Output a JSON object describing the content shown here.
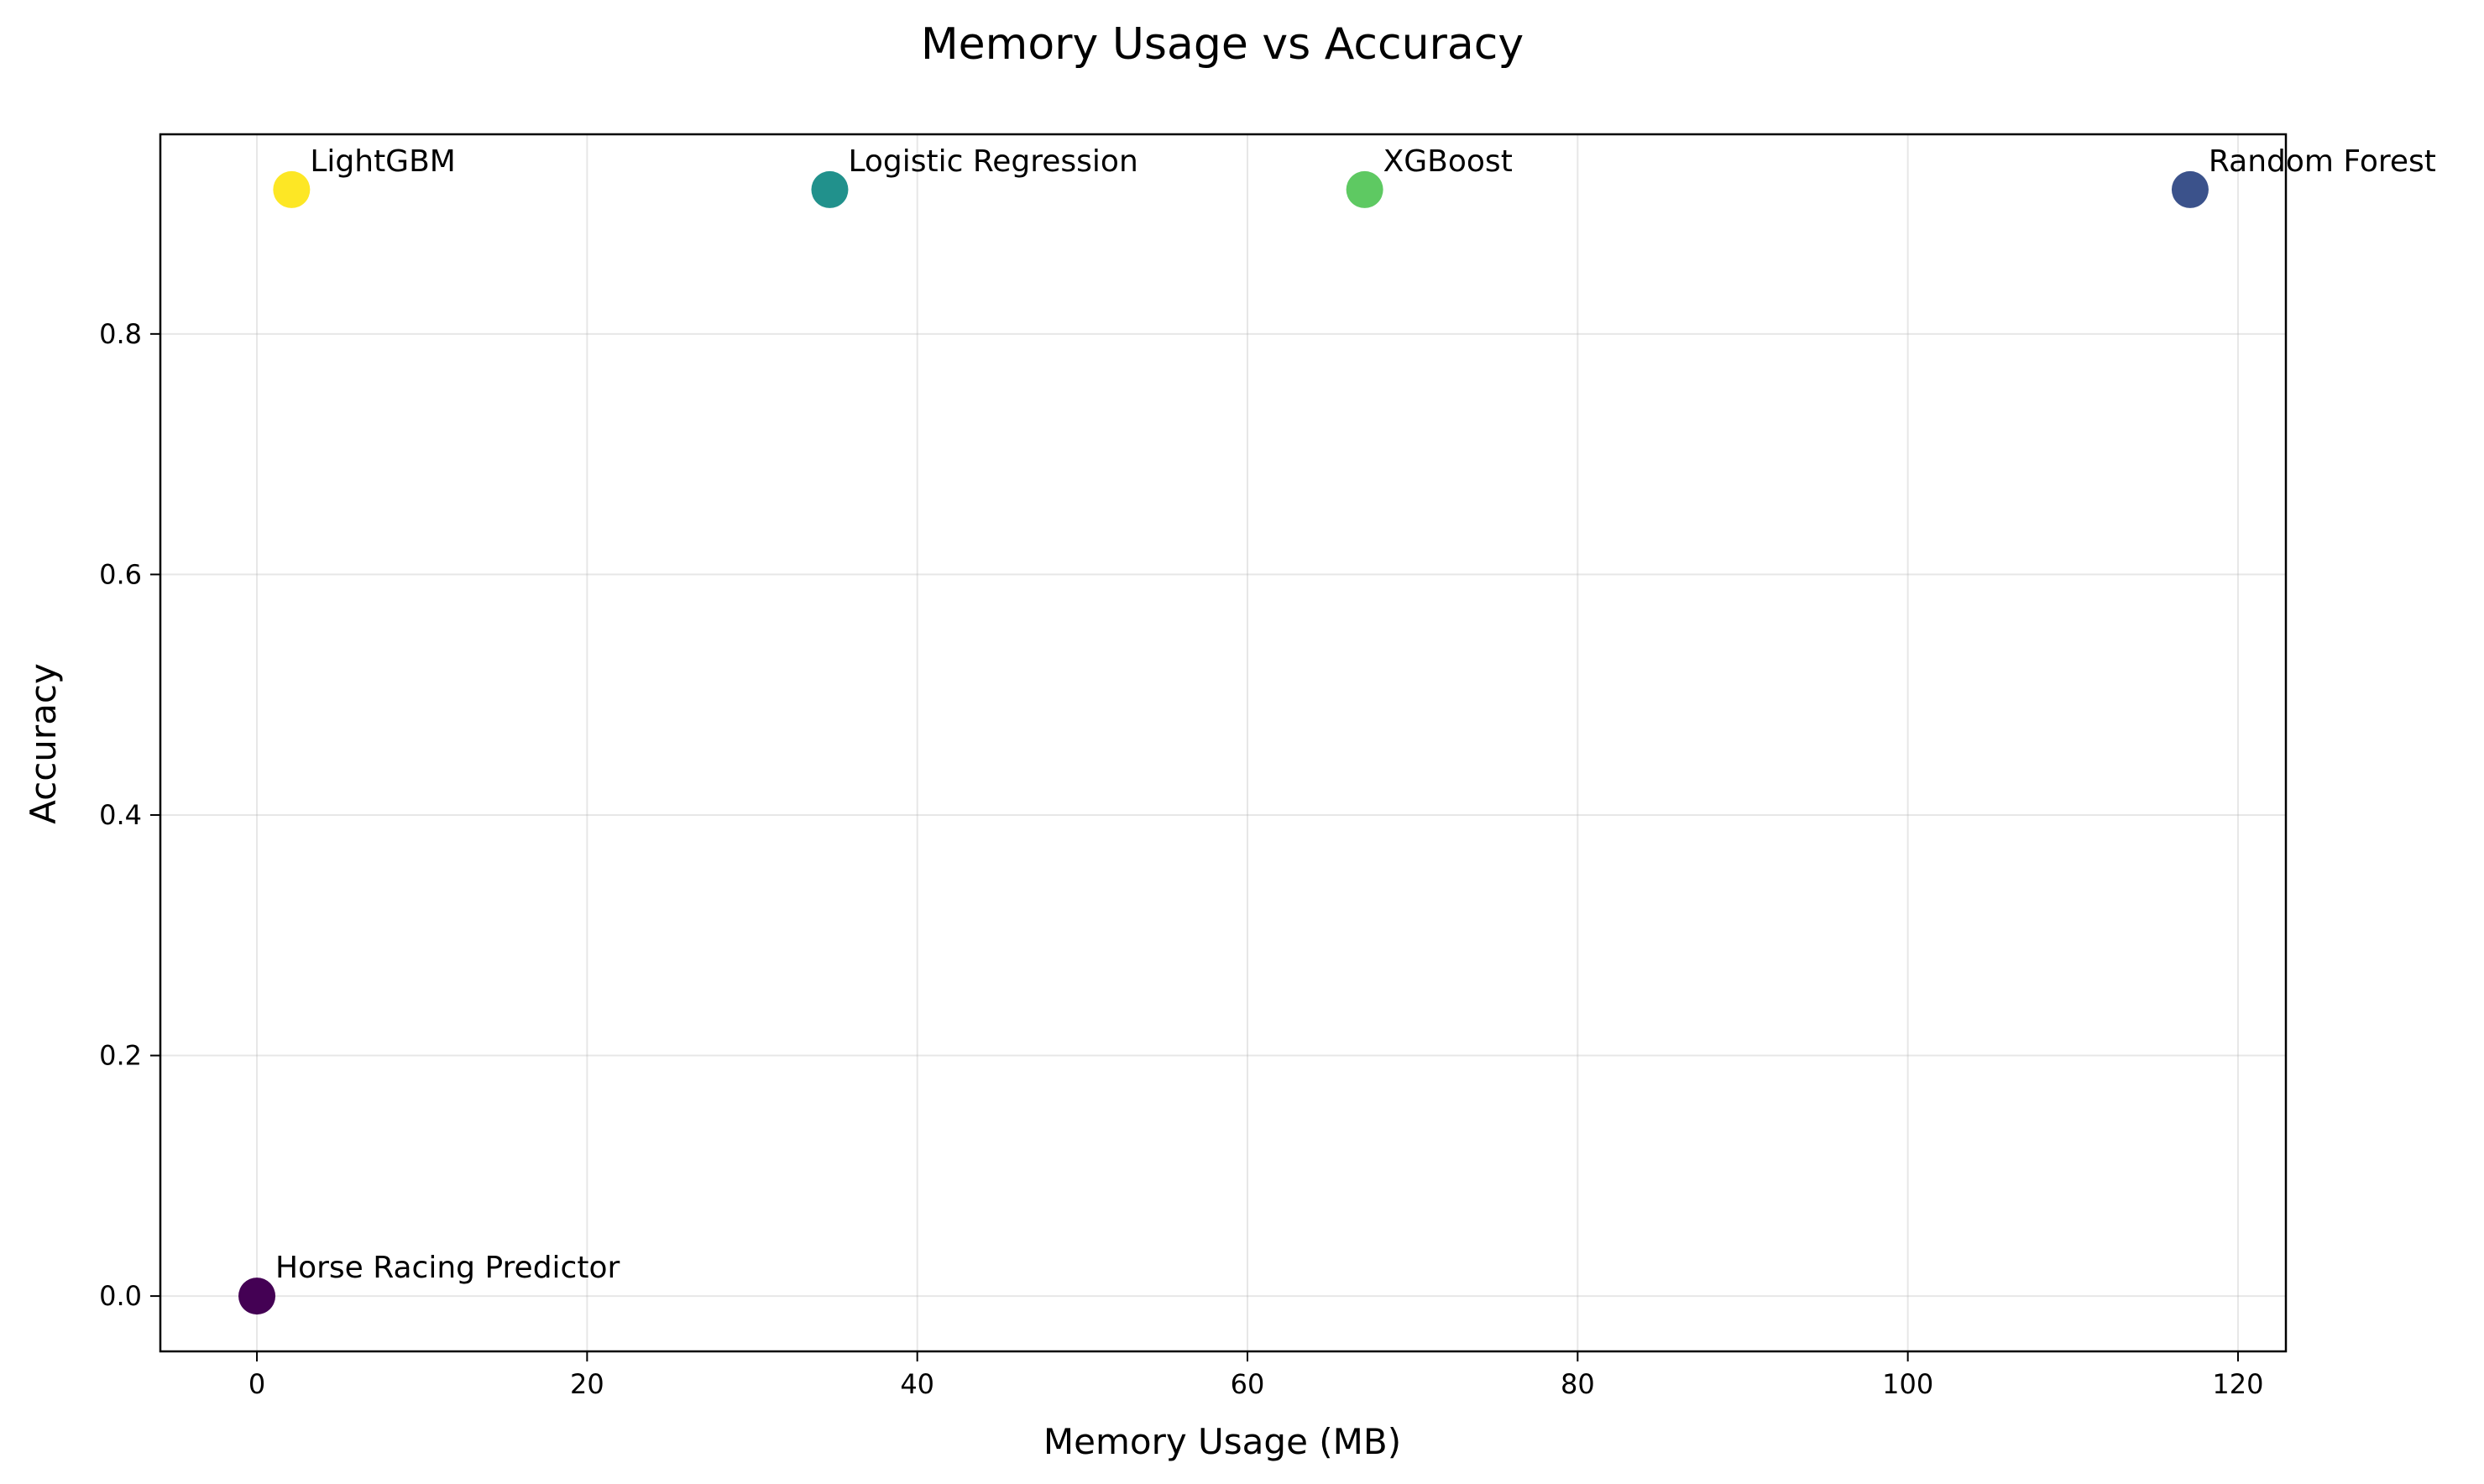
{
  "chart_data": {
    "type": "scatter",
    "title": "Memory Usage vs Accuracy",
    "xlabel": "Memory Usage (MB)",
    "ylabel": "Accuracy",
    "xlim": [
      -5.85,
      122.9
    ],
    "ylim": [
      -0.046,
      0.966
    ],
    "xticks": [
      0,
      20,
      40,
      60,
      80,
      100,
      120
    ],
    "xtick_labels": [
      "0",
      "20",
      "40",
      "60",
      "80",
      "100",
      "120"
    ],
    "yticks": [
      0.0,
      0.2,
      0.4,
      0.6,
      0.8
    ],
    "ytick_labels": [
      "0.0",
      "0.2",
      "0.4",
      "0.6",
      "0.8"
    ],
    "grid": true,
    "legend": "none",
    "points": [
      {
        "label": "Horse Racing Predictor",
        "x": 0.0,
        "y": 0.0,
        "color": "#440154"
      },
      {
        "label": "Random Forest",
        "x": 117.1,
        "y": 0.92,
        "color": "#3b528b"
      },
      {
        "label": "Logistic Regression",
        "x": 34.7,
        "y": 0.92,
        "color": "#21918c"
      },
      {
        "label": "XGBoost",
        "x": 67.1,
        "y": 0.92,
        "color": "#5ec962"
      },
      {
        "label": "LightGBM",
        "x": 2.1,
        "y": 0.92,
        "color": "#fde725"
      }
    ]
  }
}
